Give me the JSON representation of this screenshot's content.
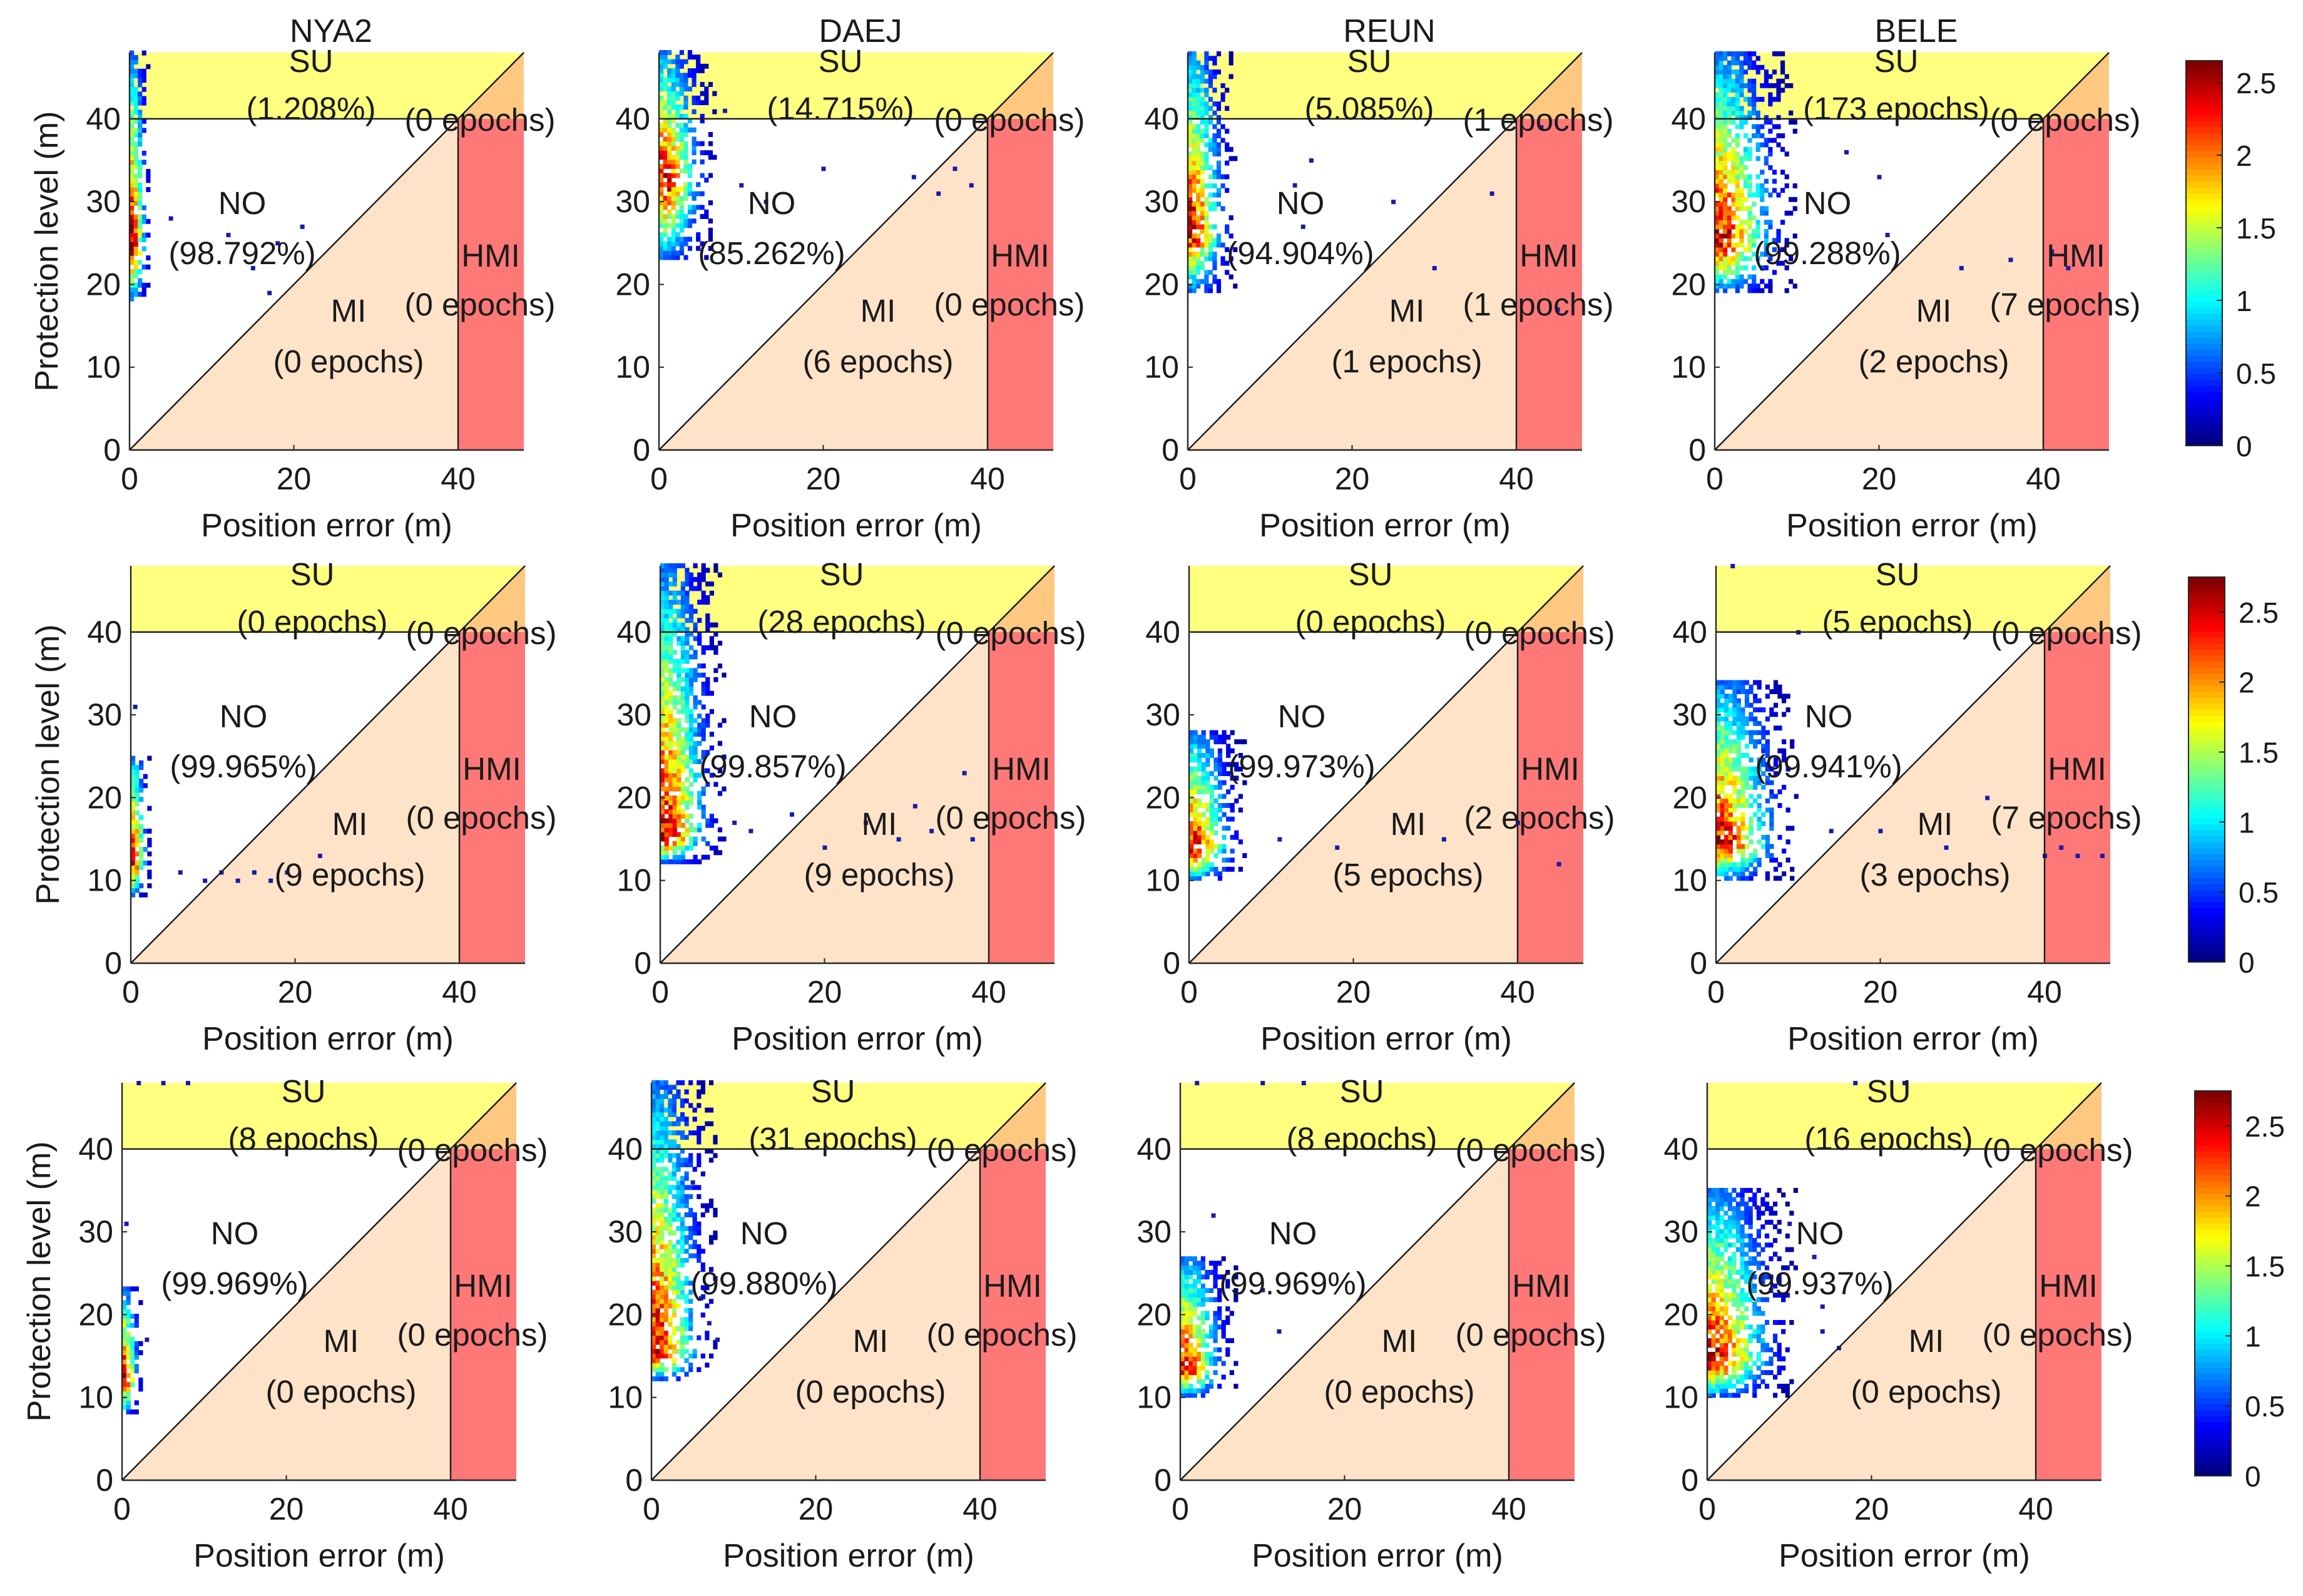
{
  "figure": {
    "common_xlabel": "Position error (m)",
    "common_ylabel": "Protection level (m)",
    "alert_limit_m": 40,
    "axis_limits": [
      0,
      48
    ],
    "ticks": [
      0,
      10,
      20,
      30,
      40
    ],
    "x_ticks": [
      0,
      20,
      40
    ],
    "region_colors": {
      "SU": "#ffff80",
      "SU_HMI_corner": "#ffc880",
      "MI": "#ffe3c8",
      "HMI": "#ff7878",
      "NO": "#ffffff"
    },
    "colorbar_colormap": "jet"
  },
  "colorbars": [
    {
      "row": 0,
      "min": 0,
      "max": 2.65,
      "ticks": [
        0,
        0.5,
        1,
        1.5,
        2,
        2.5
      ]
    },
    {
      "row": 1,
      "min": 0,
      "max": 2.75,
      "ticks": [
        0,
        0.5,
        1,
        1.5,
        2,
        2.5
      ]
    },
    {
      "row": 2,
      "min": 0,
      "max": 2.75,
      "ticks": [
        0,
        0.5,
        1,
        1.5,
        2,
        2.5
      ]
    }
  ],
  "chart_data": [
    {
      "type": "heatmap",
      "title": "NYA2",
      "row": 0,
      "col": 0,
      "xlabel": "Position error (m)",
      "ylabel": "Protection level (m)",
      "xlim": [
        0,
        48
      ],
      "ylim": [
        0,
        48
      ],
      "regions": {
        "SU_top": "SU",
        "SU_value": "(1.208%)",
        "corner_value": "(0 epochs)",
        "NO": "NO",
        "NO_value": "(98.792%)",
        "MI": "MI",
        "MI_value": "(0 epochs)",
        "HMI": "HMI",
        "HMI_value": "(0 epochs)"
      },
      "density": {
        "x_max": 2.5,
        "y_min": 18,
        "y_max": 48,
        "y_peak": 24,
        "peak": 2.6
      },
      "scatter_points": [
        [
          5,
          28
        ],
        [
          12,
          26
        ],
        [
          18,
          25
        ],
        [
          21,
          27
        ],
        [
          15,
          22
        ],
        [
          17,
          19
        ]
      ]
    },
    {
      "type": "heatmap",
      "title": "DAEJ",
      "row": 0,
      "col": 1,
      "xlabel": "Position error (m)",
      "ylabel": "",
      "xlim": [
        0,
        48
      ],
      "ylim": [
        0,
        48
      ],
      "regions": {
        "SU_top": "SU",
        "SU_value": "(14.715%)",
        "corner_value": "(0 epochs)",
        "NO": "NO",
        "NO_value": "(85.262%)",
        "MI": "MI",
        "MI_value": "(6 epochs)",
        "HMI": "HMI",
        "HMI_value": "(0 epochs)"
      },
      "density": {
        "x_max": 7,
        "y_min": 23,
        "y_max": 48,
        "y_peak": 32,
        "peak": 2.6
      },
      "scatter_points": [
        [
          8,
          41
        ],
        [
          10,
          32
        ],
        [
          13,
          30
        ],
        [
          20,
          34
        ],
        [
          31,
          33
        ],
        [
          34,
          31
        ],
        [
          36,
          34
        ],
        [
          38,
          32
        ]
      ]
    },
    {
      "type": "heatmap",
      "title": "REUN",
      "row": 0,
      "col": 2,
      "xlabel": "Position error (m)",
      "ylabel": "",
      "xlim": [
        0,
        48
      ],
      "ylim": [
        0,
        48
      ],
      "regions": {
        "SU_top": "SU",
        "SU_value": "(5.085%)",
        "corner_value": "(1 epochs)",
        "NO": "NO",
        "NO_value": "(94.904%)",
        "MI": "MI",
        "MI_value": "(1 epochs)",
        "HMI": "HMI",
        "HMI_value": "(1 epochs)"
      },
      "density": {
        "x_max": 6,
        "y_min": 19,
        "y_max": 48,
        "y_peak": 26,
        "peak": 2.6
      },
      "scatter_points": [
        [
          13,
          32
        ],
        [
          15,
          35
        ],
        [
          14,
          27
        ],
        [
          25,
          30
        ],
        [
          30,
          22
        ],
        [
          37,
          31
        ],
        [
          43,
          39
        ],
        [
          45,
          17
        ]
      ]
    },
    {
      "type": "heatmap",
      "title": "BELE",
      "row": 0,
      "col": 3,
      "xlabel": "Position error (m)",
      "ylabel": "",
      "xlim": [
        0,
        48
      ],
      "ylim": [
        0,
        48
      ],
      "regions": {
        "SU_top": "SU",
        "SU_value": "(173 epochs)",
        "corner_value": "(0 epochs)",
        "NO": "NO",
        "NO_value": "(99.288%)",
        "MI": "MI",
        "MI_value": "(2 epochs)",
        "HMI": "HMI",
        "HMI_value": "(7 epochs)"
      },
      "density": {
        "x_max": 10,
        "y_min": 19,
        "y_max": 48,
        "y_peak": 25,
        "peak": 2.6
      },
      "scatter_points": [
        [
          16,
          36
        ],
        [
          20,
          33
        ],
        [
          21,
          26
        ],
        [
          30,
          22
        ],
        [
          36,
          23
        ],
        [
          41,
          24
        ],
        [
          43,
          22
        ]
      ]
    },
    {
      "type": "heatmap",
      "title": "",
      "row": 1,
      "col": 0,
      "xlabel": "Position error (m)",
      "ylabel": "Protection level (m)",
      "xlim": [
        0,
        48
      ],
      "ylim": [
        0,
        48
      ],
      "regions": {
        "SU_top": "SU",
        "SU_value": "(0 epochs)",
        "corner_value": "(0 epochs)",
        "NO": "NO",
        "NO_value": "(99.965%)",
        "MI": "MI",
        "MI_value": "(9 epochs)",
        "HMI": "HMI",
        "HMI_value": "(0 epochs)"
      },
      "density": {
        "x_max": 2.5,
        "y_min": 8,
        "y_max": 25,
        "y_peak": 12,
        "peak": 2.7
      },
      "scatter_points": [
        [
          0.5,
          31
        ],
        [
          6,
          11
        ],
        [
          9,
          10
        ],
        [
          11,
          11
        ],
        [
          13,
          10
        ],
        [
          15,
          11
        ],
        [
          17,
          10
        ],
        [
          19,
          11
        ],
        [
          23,
          13
        ]
      ]
    },
    {
      "type": "heatmap",
      "title": "",
      "row": 1,
      "col": 1,
      "xlabel": "Position error (m)",
      "ylabel": "",
      "xlim": [
        0,
        48
      ],
      "ylim": [
        0,
        48
      ],
      "regions": {
        "SU_top": "SU",
        "SU_value": "(28 epochs)",
        "corner_value": "(0 epochs)",
        "NO": "NO",
        "NO_value": "(99.857%)",
        "MI": "MI",
        "MI_value": "(9 epochs)",
        "HMI": "HMI",
        "HMI_value": "(0 epochs)"
      },
      "density": {
        "x_max": 8,
        "y_min": 12,
        "y_max": 48,
        "y_peak": 15,
        "peak": 2.7
      },
      "scatter_points": [
        [
          9,
          17
        ],
        [
          11,
          16
        ],
        [
          16,
          18
        ],
        [
          20,
          14
        ],
        [
          25,
          17
        ],
        [
          29,
          15
        ],
        [
          31,
          19
        ],
        [
          33,
          16
        ],
        [
          37,
          23
        ],
        [
          38,
          15
        ]
      ]
    },
    {
      "type": "heatmap",
      "title": "",
      "row": 1,
      "col": 2,
      "xlabel": "Position error (m)",
      "ylabel": "",
      "xlim": [
        0,
        48
      ],
      "ylim": [
        0,
        48
      ],
      "regions": {
        "SU_top": "SU",
        "SU_value": "(0 epochs)",
        "corner_value": "(0 epochs)",
        "NO": "NO",
        "NO_value": "(99.973%)",
        "MI": "MI",
        "MI_value": "(5 epochs)",
        "HMI": "HMI",
        "HMI_value": "(2 epochs)"
      },
      "density": {
        "x_max": 7,
        "y_min": 10,
        "y_max": 28,
        "y_peak": 13,
        "peak": 2.7
      },
      "scatter_points": [
        [
          11,
          15
        ],
        [
          18,
          14
        ],
        [
          26,
          16
        ],
        [
          31,
          15
        ],
        [
          40,
          17
        ],
        [
          45,
          12
        ]
      ]
    },
    {
      "type": "heatmap",
      "title": "",
      "row": 1,
      "col": 3,
      "xlabel": "Position error (m)",
      "ylabel": "",
      "xlim": [
        0,
        48
      ],
      "ylim": [
        0,
        48
      ],
      "regions": {
        "SU_top": "SU",
        "SU_value": "(5 epochs)",
        "corner_value": "(0 epochs)",
        "NO": "NO",
        "NO_value": "(99.941%)",
        "MI": "MI",
        "MI_value": "(3 epochs)",
        "HMI": "HMI",
        "HMI_value": "(7 epochs)"
      },
      "density": {
        "x_max": 10,
        "y_min": 10,
        "y_max": 34,
        "y_peak": 14,
        "peak": 2.7
      },
      "scatter_points": [
        [
          2,
          48
        ],
        [
          10,
          40
        ],
        [
          14,
          16
        ],
        [
          20,
          16
        ],
        [
          28,
          14
        ],
        [
          33,
          20
        ],
        [
          40,
          13
        ],
        [
          42,
          14
        ],
        [
          44,
          13
        ],
        [
          47,
          13
        ]
      ]
    },
    {
      "type": "heatmap",
      "title": "",
      "row": 2,
      "col": 0,
      "xlabel": "Position error (m)",
      "ylabel": "Protection level (m)",
      "xlim": [
        0,
        48
      ],
      "ylim": [
        0,
        48
      ],
      "regions": {
        "SU_top": "SU",
        "SU_value": "(8 epochs)",
        "corner_value": "(0 epochs)",
        "NO": "NO",
        "NO_value": "(99.969%)",
        "MI": "MI",
        "MI_value": "(0 epochs)",
        "HMI": "HMI",
        "HMI_value": "(0 epochs)"
      },
      "density": {
        "x_max": 2.5,
        "y_min": 8,
        "y_max": 23,
        "y_peak": 12,
        "peak": 2.7
      },
      "scatter_points": [
        [
          0.5,
          31
        ],
        [
          3,
          17
        ],
        [
          2,
          48
        ],
        [
          5,
          48
        ],
        [
          8,
          48
        ]
      ]
    },
    {
      "type": "heatmap",
      "title": "",
      "row": 2,
      "col": 1,
      "xlabel": "Position error (m)",
      "ylabel": "",
      "xlim": [
        0,
        48
      ],
      "ylim": [
        0,
        48
      ],
      "regions": {
        "SU_top": "SU",
        "SU_value": "(31 epochs)",
        "corner_value": "(0 epochs)",
        "NO": "NO",
        "NO_value": "(99.880%)",
        "MI": "MI",
        "MI_value": "(0 epochs)",
        "HMI": "HMI",
        "HMI_value": "(0 epochs)"
      },
      "density": {
        "x_max": 8,
        "y_min": 12,
        "y_max": 48,
        "y_peak": 15,
        "peak": 2.7
      },
      "scatter_points": [
        [
          7,
          19
        ],
        [
          8,
          17
        ],
        [
          6,
          22
        ],
        [
          5,
          36
        ]
      ]
    },
    {
      "type": "heatmap",
      "title": "",
      "row": 2,
      "col": 2,
      "xlabel": "Position error (m)",
      "ylabel": "",
      "xlim": [
        0,
        48
      ],
      "ylim": [
        0,
        48
      ],
      "regions": {
        "SU_top": "SU",
        "SU_value": "(8 epochs)",
        "corner_value": "(0 epochs)",
        "NO": "NO",
        "NO_value": "(99.969%)",
        "MI": "MI",
        "MI_value": "(0 epochs)",
        "HMI": "HMI",
        "HMI_value": "(0 epochs)"
      },
      "density": {
        "x_max": 7,
        "y_min": 10,
        "y_max": 27,
        "y_peak": 13,
        "peak": 2.7
      },
      "scatter_points": [
        [
          4,
          32
        ],
        [
          10,
          23
        ],
        [
          12,
          18
        ],
        [
          2,
          48
        ],
        [
          10,
          48
        ],
        [
          15,
          48
        ]
      ]
    },
    {
      "type": "heatmap",
      "title": "",
      "row": 2,
      "col": 3,
      "xlabel": "Position error (m)",
      "ylabel": "",
      "xlim": [
        0,
        48
      ],
      "ylim": [
        0,
        48
      ],
      "regions": {
        "SU_top": "SU",
        "SU_value": "(16 epochs)",
        "corner_value": "(0 epochs)",
        "NO": "NO",
        "NO_value": "(99.937%)",
        "MI": "MI",
        "MI_value": "(0 epochs)",
        "HMI": "HMI",
        "HMI_value": "(0 epochs)"
      },
      "density": {
        "x_max": 11,
        "y_min": 10,
        "y_max": 35,
        "y_peak": 14,
        "peak": 2.7
      },
      "scatter_points": [
        [
          6,
          33
        ],
        [
          10,
          31
        ],
        [
          13,
          27
        ],
        [
          14,
          18
        ],
        [
          16,
          16
        ],
        [
          14,
          21
        ],
        [
          18,
          48
        ],
        [
          24,
          48
        ]
      ]
    }
  ]
}
